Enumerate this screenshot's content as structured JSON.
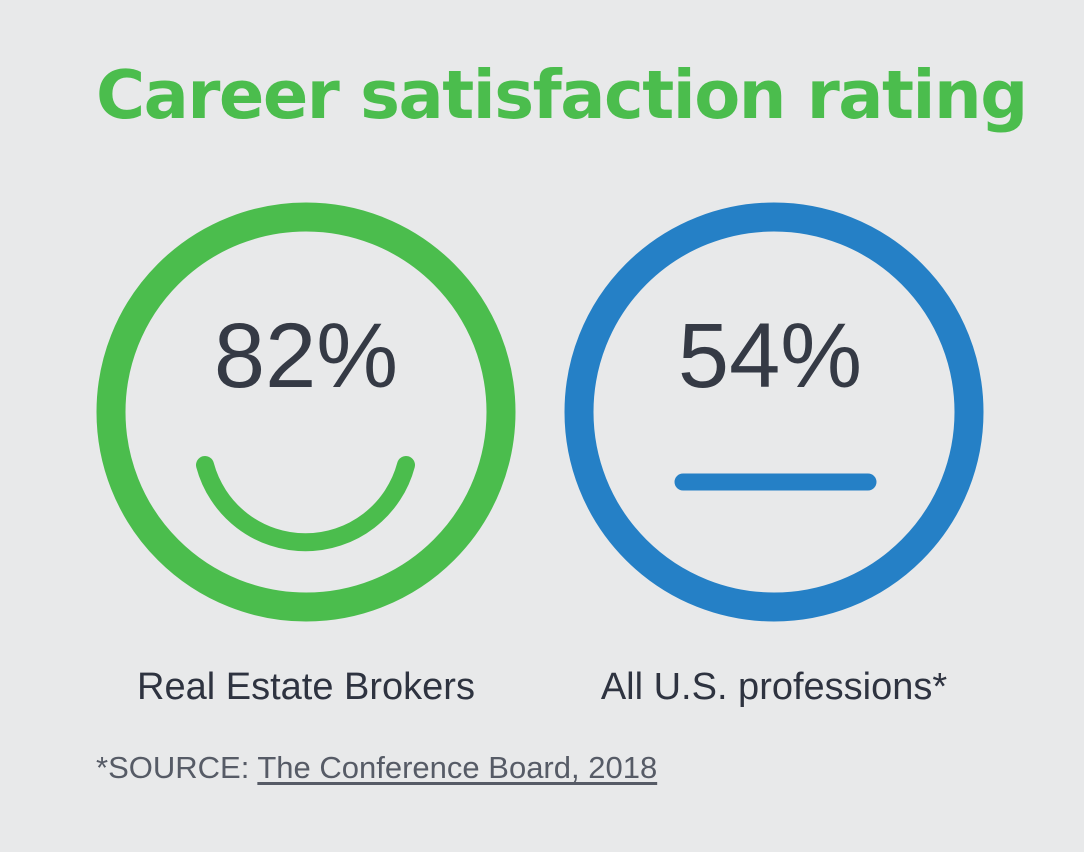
{
  "title": "Career satisfaction rating",
  "colors": {
    "title": "#4bbd4d",
    "positive": "#4bbd4d",
    "neutral": "#2580c6",
    "background": "#e8e9ea"
  },
  "faces": [
    {
      "value": "82%",
      "label": "Real Estate Brokers",
      "expression": "smile",
      "icon": "smiley-face-icon",
      "color": "#4bbd4d"
    },
    {
      "value": "54%",
      "label": "All U.S. professions*",
      "expression": "neutral",
      "icon": "neutral-face-icon",
      "color": "#2580c6"
    }
  ],
  "source": {
    "prefix": "*SOURCE: ",
    "link_text": "The Conference Board, 2018"
  }
}
